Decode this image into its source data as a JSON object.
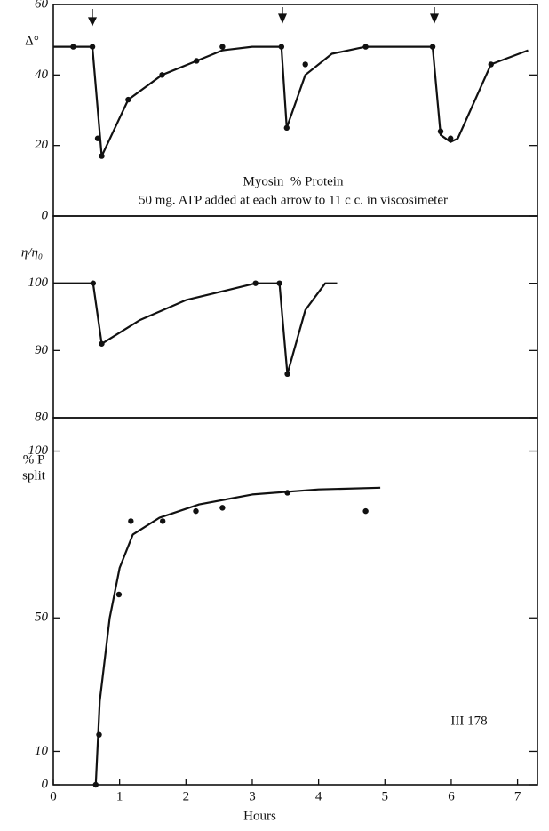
{
  "chart_data": [
    {
      "type": "line",
      "ylabel": "Δ°",
      "annotations": [
        "Myosin  % Protein",
        "50 mg. ATP added at each arrow to 11 c c. in viscosimeter"
      ],
      "xlim": [
        0,
        7.3
      ],
      "ylim": [
        0,
        60
      ],
      "yticks": [
        0,
        20,
        40,
        60
      ],
      "series": [
        {
          "mode": "lines",
          "color": "#111111",
          "x": [
            0,
            0.59,
            0.73,
            1.13,
            1.64,
            2.16,
            2.55,
            3.0,
            3.44,
            3.52,
            3.8,
            4.2,
            4.71,
            5.72,
            5.84,
            5.99,
            6.1,
            6.6,
            7.16
          ],
          "values": [
            48,
            48,
            17,
            33,
            40,
            44,
            47,
            48,
            48,
            25,
            40,
            46,
            48,
            48,
            23,
            21,
            22,
            43,
            47
          ]
        },
        {
          "mode": "markers",
          "color": "#111111",
          "x": [
            0.3,
            0.59,
            0.67,
            0.73,
            1.13,
            1.64,
            2.16,
            2.55,
            3.44,
            3.52,
            3.8,
            4.71,
            5.72,
            5.84,
            5.99,
            6.6
          ],
          "values": [
            48,
            48,
            22,
            17,
            33,
            40,
            44,
            48,
            48,
            25,
            43,
            48,
            48,
            24,
            22,
            43
          ]
        }
      ]
    },
    {
      "type": "line",
      "ylabel": "η/η₀",
      "xlim": [
        0,
        7.3
      ],
      "ylim": [
        80,
        110
      ],
      "yticks": [
        80,
        90,
        100
      ],
      "series": [
        {
          "mode": "lines",
          "color": "#111111",
          "x": [
            0,
            0.6,
            0.73,
            1.3,
            2.0,
            3.05,
            3.41,
            3.53,
            3.8,
            4.1,
            4.28
          ],
          "values": [
            100,
            100,
            91,
            94.5,
            97.5,
            100,
            100,
            86.5,
            96,
            100,
            100
          ]
        },
        {
          "mode": "markers",
          "color": "#111111",
          "x": [
            0.6,
            0.73,
            3.05,
            3.41,
            3.53
          ],
          "values": [
            100,
            91,
            100,
            100,
            86.5
          ]
        }
      ]
    },
    {
      "type": "line",
      "ylabel": [
        "% P",
        "split"
      ],
      "annotations": [
        "III 178"
      ],
      "xlabel": "Hours",
      "xlim": [
        0,
        7.3
      ],
      "ylim": [
        0,
        110
      ],
      "yticks": [
        0,
        10,
        50,
        100
      ],
      "xticks": [
        0,
        1,
        2,
        3,
        4,
        5,
        6,
        7
      ],
      "series": [
        {
          "mode": "lines",
          "color": "#111111",
          "x": [
            0.64,
            0.7,
            0.85,
            1.0,
            1.2,
            1.6,
            2.2,
            3.0,
            4.0,
            4.93
          ],
          "values": [
            0,
            25,
            50,
            65,
            75,
            80,
            84,
            87,
            88.5,
            89
          ]
        },
        {
          "mode": "markers",
          "color": "#111111",
          "x": [
            0.64,
            0.69,
            0.99,
            1.17,
            1.65,
            2.15,
            2.55,
            3.53,
            4.71
          ],
          "values": [
            0,
            15,
            57,
            79,
            79,
            82,
            83,
            87.5,
            82
          ]
        }
      ]
    }
  ]
}
